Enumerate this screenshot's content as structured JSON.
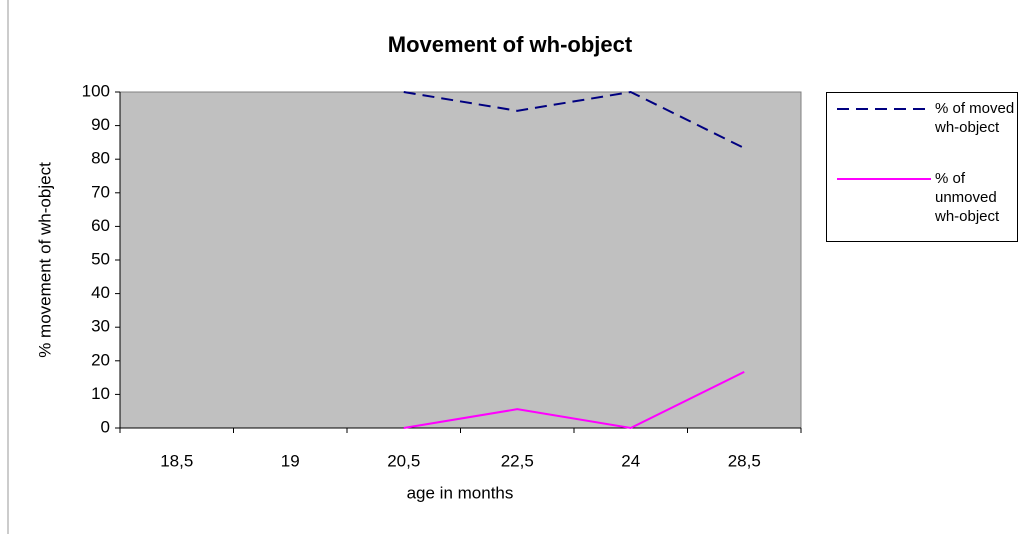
{
  "chart_data": {
    "type": "line",
    "title": "Movement of wh-object",
    "x_label": "age in months",
    "y_label": "% movement of wh-object",
    "categories": [
      "18,5",
      "19",
      "20,5",
      "22,5",
      "24",
      "28,5"
    ],
    "series": [
      {
        "name": "% of moved wh-object",
        "color": "#000080",
        "dashed": true,
        "values": [
          null,
          null,
          100,
          94.4,
          100,
          83.3
        ]
      },
      {
        "name": "% of unmoved wh-object",
        "color": "#ff00ff",
        "dashed": false,
        "values": [
          null,
          null,
          0,
          5.6,
          0,
          16.7
        ]
      }
    ],
    "ylim": [
      0,
      100
    ],
    "yticks": [
      0,
      10,
      20,
      30,
      40,
      50,
      60,
      70,
      80,
      90,
      100
    ],
    "plot_background": "#c0c0c0",
    "legend": "right"
  }
}
